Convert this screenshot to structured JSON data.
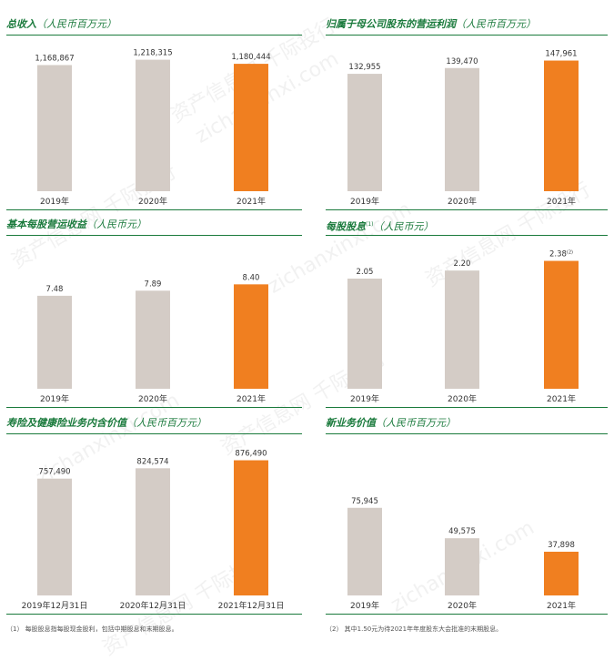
{
  "colors": {
    "gray_bar": "#d4ccc6",
    "orange_bar": "#f07f20",
    "green": "#1a7a3c"
  },
  "chart_data": [
    {
      "type": "bar",
      "title": "总收入",
      "unit": "（人民币百万元）",
      "categories": [
        "2019年",
        "2020年",
        "2021年"
      ],
      "values": [
        1168867,
        1218315,
        1180444
      ],
      "labels": [
        "1,168,867",
        "1,218,315",
        "1,180,444"
      ],
      "label_sup": [
        "",
        "",
        ""
      ],
      "highlight_index": 2,
      "ylim": [
        0,
        1350000
      ]
    },
    {
      "type": "bar",
      "title": "归属于母公司股东的营运利润",
      "unit": "（人民币百万元）",
      "categories": [
        "2019年",
        "2020年",
        "2021年"
      ],
      "values": [
        132955,
        139470,
        147961
      ],
      "labels": [
        "132,955",
        "139,470",
        "147,961"
      ],
      "label_sup": [
        "",
        "",
        ""
      ],
      "highlight_index": 2,
      "ylim": [
        0,
        165000
      ]
    },
    {
      "type": "bar",
      "title": "基本每股营运收益",
      "unit": "（人民币元）",
      "categories": [
        "2019年",
        "2020年",
        "2021年"
      ],
      "values": [
        7.48,
        7.89,
        8.4
      ],
      "labels": [
        "7.48",
        "7.89",
        "8.40"
      ],
      "label_sup": [
        "",
        "",
        ""
      ],
      "highlight_index": 2,
      "ylim": [
        0,
        11.5
      ]
    },
    {
      "type": "bar",
      "title": "每股股息",
      "title_sup": "(1)",
      "unit": "（人民币元）",
      "categories": [
        "2019年",
        "2020年",
        "2021年"
      ],
      "values": [
        2.05,
        2.2,
        2.38
      ],
      "labels": [
        "2.05",
        "2.20",
        "2.38"
      ],
      "label_sup": [
        "",
        "",
        "(2)"
      ],
      "highlight_index": 2,
      "ylim": [
        0,
        2.66
      ]
    },
    {
      "type": "bar",
      "title": "寿险及健康险业务内含价值",
      "unit": "（人民币百万元）",
      "categories": [
        "2019年12月31日",
        "2020年12月31日",
        "2021年12月31日"
      ],
      "values": [
        757490,
        824574,
        876490
      ],
      "labels": [
        "757,490",
        "824,574",
        "876,490"
      ],
      "label_sup": [
        "",
        "",
        ""
      ],
      "highlight_index": 2,
      "ylim": [
        0,
        980000
      ]
    },
    {
      "type": "bar",
      "title": "新业务价值",
      "unit": "（人民币百万元）",
      "categories": [
        "2019年",
        "2020年",
        "2021年"
      ],
      "values": [
        75945,
        49575,
        37898
      ],
      "labels": [
        "75,945",
        "49,575",
        "37,898"
      ],
      "label_sup": [
        "",
        "",
        ""
      ],
      "highlight_index": 2,
      "ylim": [
        0,
        131000
      ]
    }
  ],
  "footnotes": {
    "left": "（1）  每股股息指每股现金股利，包括中期股息和末期股息。",
    "right": "（2）  其中1.50元为待2021年年度股东大会批准的末期股息。"
  },
  "watermark": {
    "cn": "资产信息网 千际投行",
    "en": "zichanxinxi.com"
  }
}
